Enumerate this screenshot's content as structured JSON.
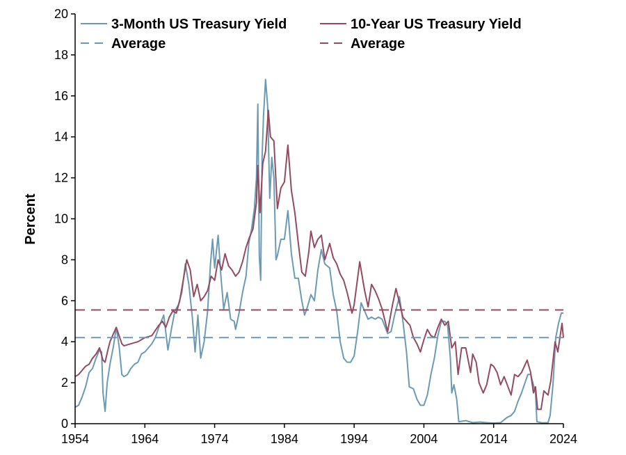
{
  "chart_data": {
    "type": "line",
    "title": "",
    "xlabel": "",
    "ylabel": "Percent",
    "xlim": [
      1954,
      2024
    ],
    "ylim": [
      0,
      20
    ],
    "x_ticks": [
      1954,
      1964,
      1974,
      1984,
      1994,
      2004,
      2014,
      2024
    ],
    "y_ticks": [
      0,
      2,
      4,
      6,
      8,
      10,
      12,
      14,
      16,
      18,
      20
    ],
    "grid": false,
    "legend": "top",
    "series": [
      {
        "name": "3-Month US Treasury Yield",
        "color": "#6a9ab4",
        "style": "solid",
        "points": [
          [
            1954.0,
            0.8
          ],
          [
            1954.5,
            0.9
          ],
          [
            1955.0,
            1.3
          ],
          [
            1955.5,
            1.8
          ],
          [
            1956.0,
            2.5
          ],
          [
            1956.5,
            2.7
          ],
          [
            1957.0,
            3.2
          ],
          [
            1957.5,
            3.6
          ],
          [
            1957.8,
            3.5
          ],
          [
            1958.0,
            1.5
          ],
          [
            1958.3,
            0.6
          ],
          [
            1958.6,
            2.0
          ],
          [
            1959.0,
            2.9
          ],
          [
            1959.5,
            3.8
          ],
          [
            1959.9,
            4.7
          ],
          [
            1960.3,
            3.8
          ],
          [
            1960.7,
            2.4
          ],
          [
            1961.0,
            2.3
          ],
          [
            1961.5,
            2.4
          ],
          [
            1962.0,
            2.7
          ],
          [
            1962.5,
            2.9
          ],
          [
            1963.0,
            3.0
          ],
          [
            1963.5,
            3.4
          ],
          [
            1964.0,
            3.5
          ],
          [
            1965.0,
            3.9
          ],
          [
            1965.5,
            4.2
          ],
          [
            1966.0,
            4.7
          ],
          [
            1966.7,
            5.3
          ],
          [
            1967.3,
            3.6
          ],
          [
            1967.8,
            4.6
          ],
          [
            1968.3,
            5.5
          ],
          [
            1968.8,
            5.8
          ],
          [
            1969.3,
            6.4
          ],
          [
            1969.8,
            7.8
          ],
          [
            1970.3,
            6.8
          ],
          [
            1970.8,
            5.2
          ],
          [
            1971.2,
            3.5
          ],
          [
            1971.6,
            5.3
          ],
          [
            1972.0,
            3.2
          ],
          [
            1972.5,
            4.0
          ],
          [
            1973.0,
            5.5
          ],
          [
            1973.4,
            7.8
          ],
          [
            1973.7,
            9.0
          ],
          [
            1974.0,
            7.6
          ],
          [
            1974.5,
            9.2
          ],
          [
            1974.9,
            7.2
          ],
          [
            1975.3,
            5.6
          ],
          [
            1975.8,
            6.4
          ],
          [
            1976.3,
            5.1
          ],
          [
            1976.8,
            5.0
          ],
          [
            1977.0,
            4.6
          ],
          [
            1977.5,
            5.4
          ],
          [
            1978.0,
            6.4
          ],
          [
            1978.5,
            7.2
          ],
          [
            1978.9,
            8.8
          ],
          [
            1979.3,
            9.5
          ],
          [
            1979.7,
            10.5
          ],
          [
            1980.0,
            12.0
          ],
          [
            1980.2,
            15.6
          ],
          [
            1980.4,
            8.2
          ],
          [
            1980.6,
            7.0
          ],
          [
            1980.8,
            13.0
          ],
          [
            1981.0,
            15.0
          ],
          [
            1981.3,
            16.8
          ],
          [
            1981.6,
            15.5
          ],
          [
            1981.9,
            11.0
          ],
          [
            1982.2,
            13.0
          ],
          [
            1982.5,
            12.0
          ],
          [
            1982.8,
            8.0
          ],
          [
            1983.0,
            8.2
          ],
          [
            1983.5,
            9.0
          ],
          [
            1984.0,
            9.0
          ],
          [
            1984.5,
            10.4
          ],
          [
            1985.0,
            8.3
          ],
          [
            1985.5,
            7.1
          ],
          [
            1986.0,
            7.1
          ],
          [
            1986.5,
            6.0
          ],
          [
            1986.9,
            5.3
          ],
          [
            1987.3,
            5.7
          ],
          [
            1987.8,
            6.3
          ],
          [
            1988.3,
            6.0
          ],
          [
            1988.8,
            7.5
          ],
          [
            1989.3,
            8.5
          ],
          [
            1989.8,
            7.8
          ],
          [
            1990.5,
            7.6
          ],
          [
            1991.0,
            6.3
          ],
          [
            1991.5,
            5.5
          ],
          [
            1992.0,
            4.0
          ],
          [
            1992.5,
            3.2
          ],
          [
            1993.0,
            3.0
          ],
          [
            1993.5,
            3.0
          ],
          [
            1994.0,
            3.3
          ],
          [
            1994.5,
            4.5
          ],
          [
            1995.0,
            5.9
          ],
          [
            1995.5,
            5.5
          ],
          [
            1996.0,
            5.1
          ],
          [
            1996.5,
            5.2
          ],
          [
            1997.0,
            5.1
          ],
          [
            1997.5,
            5.2
          ],
          [
            1998.0,
            5.1
          ],
          [
            1998.8,
            4.4
          ],
          [
            1999.3,
            4.5
          ],
          [
            1999.8,
            5.3
          ],
          [
            2000.5,
            6.2
          ],
          [
            2001.0,
            5.0
          ],
          [
            2001.5,
            3.5
          ],
          [
            2001.9,
            1.8
          ],
          [
            2002.5,
            1.7
          ],
          [
            2003.0,
            1.2
          ],
          [
            2003.5,
            0.9
          ],
          [
            2004.0,
            0.9
          ],
          [
            2004.5,
            1.4
          ],
          [
            2005.0,
            2.4
          ],
          [
            2005.5,
            3.2
          ],
          [
            2006.0,
            4.3
          ],
          [
            2006.5,
            5.0
          ],
          [
            2007.0,
            5.0
          ],
          [
            2007.4,
            4.8
          ],
          [
            2007.8,
            3.2
          ],
          [
            2008.0,
            1.5
          ],
          [
            2008.3,
            1.9
          ],
          [
            2008.7,
            1.2
          ],
          [
            2009.0,
            0.1
          ],
          [
            2010.0,
            0.15
          ],
          [
            2011.0,
            0.05
          ],
          [
            2012.0,
            0.08
          ],
          [
            2013.0,
            0.05
          ],
          [
            2014.0,
            0.03
          ],
          [
            2015.0,
            0.05
          ],
          [
            2015.9,
            0.3
          ],
          [
            2016.5,
            0.4
          ],
          [
            2017.0,
            0.6
          ],
          [
            2017.5,
            1.1
          ],
          [
            2018.0,
            1.5
          ],
          [
            2018.5,
            2.0
          ],
          [
            2018.9,
            2.4
          ],
          [
            2019.3,
            2.4
          ],
          [
            2019.7,
            1.9
          ],
          [
            2020.0,
            1.5
          ],
          [
            2020.2,
            0.1
          ],
          [
            2021.0,
            0.04
          ],
          [
            2021.8,
            0.05
          ],
          [
            2022.1,
            0.4
          ],
          [
            2022.5,
            1.9
          ],
          [
            2022.9,
            4.2
          ],
          [
            2023.3,
            4.9
          ],
          [
            2023.7,
            5.4
          ],
          [
            2024.0,
            5.4
          ]
        ]
      },
      {
        "name": "10-Year US Treasury Yield",
        "color": "#944a5e",
        "style": "solid",
        "points": [
          [
            1954.0,
            2.3
          ],
          [
            1954.5,
            2.4
          ],
          [
            1955.0,
            2.6
          ],
          [
            1955.5,
            2.8
          ],
          [
            1956.0,
            2.9
          ],
          [
            1956.5,
            3.2
          ],
          [
            1957.0,
            3.4
          ],
          [
            1957.5,
            3.7
          ],
          [
            1958.0,
            3.1
          ],
          [
            1958.3,
            3.0
          ],
          [
            1958.7,
            3.6
          ],
          [
            1959.0,
            4.0
          ],
          [
            1959.5,
            4.4
          ],
          [
            1959.9,
            4.7
          ],
          [
            1960.3,
            4.3
          ],
          [
            1960.7,
            3.9
          ],
          [
            1961.0,
            3.8
          ],
          [
            1962.0,
            3.9
          ],
          [
            1963.0,
            4.0
          ],
          [
            1964.0,
            4.2
          ],
          [
            1965.0,
            4.3
          ],
          [
            1966.0,
            4.8
          ],
          [
            1966.5,
            5.0
          ],
          [
            1967.0,
            4.7
          ],
          [
            1967.5,
            5.2
          ],
          [
            1968.0,
            5.5
          ],
          [
            1968.5,
            5.4
          ],
          [
            1969.0,
            6.0
          ],
          [
            1969.5,
            7.0
          ],
          [
            1970.0,
            8.0
          ],
          [
            1970.5,
            7.5
          ],
          [
            1971.0,
            6.2
          ],
          [
            1971.5,
            6.8
          ],
          [
            1972.0,
            6.0
          ],
          [
            1972.5,
            6.2
          ],
          [
            1973.0,
            6.5
          ],
          [
            1973.5,
            7.2
          ],
          [
            1974.0,
            7.0
          ],
          [
            1974.5,
            8.0
          ],
          [
            1975.0,
            7.5
          ],
          [
            1975.5,
            8.3
          ],
          [
            1976.0,
            7.7
          ],
          [
            1976.5,
            7.5
          ],
          [
            1977.0,
            7.2
          ],
          [
            1977.5,
            7.4
          ],
          [
            1978.0,
            7.9
          ],
          [
            1978.5,
            8.6
          ],
          [
            1979.0,
            9.1
          ],
          [
            1979.5,
            9.5
          ],
          [
            1980.0,
            10.8
          ],
          [
            1980.2,
            12.6
          ],
          [
            1980.5,
            10.3
          ],
          [
            1980.9,
            12.7
          ],
          [
            1981.3,
            13.3
          ],
          [
            1981.7,
            15.3
          ],
          [
            1982.0,
            14.0
          ],
          [
            1982.5,
            13.8
          ],
          [
            1983.0,
            10.5
          ],
          [
            1983.5,
            11.5
          ],
          [
            1984.0,
            11.8
          ],
          [
            1984.5,
            13.6
          ],
          [
            1985.0,
            11.4
          ],
          [
            1985.5,
            10.3
          ],
          [
            1986.0,
            8.8
          ],
          [
            1986.5,
            7.4
          ],
          [
            1987.0,
            7.2
          ],
          [
            1987.5,
            8.4
          ],
          [
            1987.8,
            9.4
          ],
          [
            1988.3,
            8.6
          ],
          [
            1988.8,
            9.0
          ],
          [
            1989.3,
            9.2
          ],
          [
            1989.8,
            8.0
          ],
          [
            1990.5,
            8.8
          ],
          [
            1991.0,
            8.1
          ],
          [
            1991.5,
            7.8
          ],
          [
            1992.0,
            7.3
          ],
          [
            1992.5,
            7.0
          ],
          [
            1993.0,
            6.4
          ],
          [
            1993.7,
            5.4
          ],
          [
            1994.0,
            5.8
          ],
          [
            1994.8,
            7.9
          ],
          [
            1995.5,
            6.5
          ],
          [
            1996.0,
            5.7
          ],
          [
            1996.5,
            6.8
          ],
          [
            1997.0,
            6.5
          ],
          [
            1997.5,
            6.1
          ],
          [
            1998.0,
            5.6
          ],
          [
            1998.8,
            4.5
          ],
          [
            1999.5,
            5.8
          ],
          [
            2000.0,
            6.6
          ],
          [
            2000.5,
            5.9
          ],
          [
            2001.0,
            5.2
          ],
          [
            2001.5,
            5.0
          ],
          [
            2002.0,
            4.8
          ],
          [
            2002.5,
            4.2
          ],
          [
            2003.0,
            3.9
          ],
          [
            2003.5,
            3.5
          ],
          [
            2004.0,
            4.1
          ],
          [
            2004.5,
            4.6
          ],
          [
            2005.0,
            4.3
          ],
          [
            2005.5,
            4.2
          ],
          [
            2006.0,
            4.7
          ],
          [
            2006.5,
            5.1
          ],
          [
            2007.0,
            4.8
          ],
          [
            2007.5,
            5.0
          ],
          [
            2008.0,
            3.7
          ],
          [
            2008.5,
            4.0
          ],
          [
            2008.9,
            2.4
          ],
          [
            2009.4,
            3.7
          ],
          [
            2010.0,
            3.7
          ],
          [
            2010.7,
            2.5
          ],
          [
            2011.0,
            3.4
          ],
          [
            2011.5,
            3.0
          ],
          [
            2011.9,
            2.0
          ],
          [
            2012.5,
            1.5
          ],
          [
            2013.0,
            1.9
          ],
          [
            2013.6,
            2.9
          ],
          [
            2014.0,
            2.8
          ],
          [
            2014.5,
            2.5
          ],
          [
            2015.0,
            1.9
          ],
          [
            2015.5,
            2.3
          ],
          [
            2016.5,
            1.4
          ],
          [
            2017.0,
            2.4
          ],
          [
            2017.5,
            2.3
          ],
          [
            2018.0,
            2.5
          ],
          [
            2018.8,
            3.1
          ],
          [
            2019.3,
            2.5
          ],
          [
            2019.7,
            1.5
          ],
          [
            2020.0,
            1.8
          ],
          [
            2020.3,
            0.7
          ],
          [
            2020.8,
            0.7
          ],
          [
            2021.2,
            1.6
          ],
          [
            2021.8,
            1.4
          ],
          [
            2022.2,
            2.1
          ],
          [
            2022.8,
            4.0
          ],
          [
            2023.2,
            3.5
          ],
          [
            2023.8,
            4.9
          ],
          [
            2024.0,
            4.2
          ]
        ]
      },
      {
        "name": "Average",
        "color": "#6a9ab4",
        "style": "dashed",
        "y": 4.2
      },
      {
        "name": "Average",
        "color": "#944a5e",
        "style": "dashed",
        "y": 5.55
      }
    ]
  }
}
